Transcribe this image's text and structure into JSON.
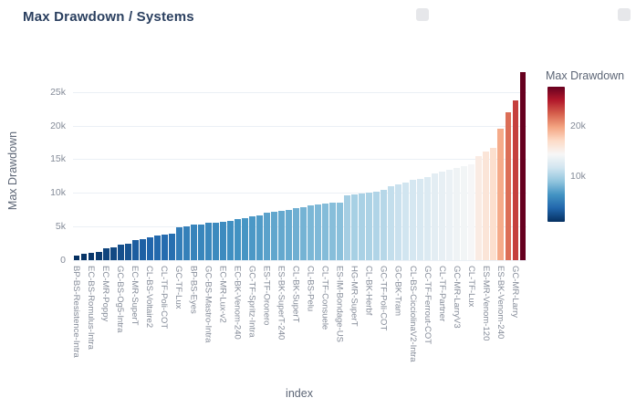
{
  "page": {
    "background": "#ffffff"
  },
  "icons": {
    "toolbar_left_button": "square-placeholder",
    "toolbar_right_button": "square-placeholder"
  },
  "colors": {
    "title_text": "#2a3f5f",
    "axis_title_text": "#5d6676",
    "tick_text": "#848b98",
    "gridline": "#ebf0f5"
  },
  "chart_data": {
    "type": "bar",
    "title": "Max Drawdown / Systems",
    "xlabel": "index",
    "ylabel": "Max Drawdown",
    "colorbar_title": "Max Drawdown",
    "grid": true,
    "legend_position": "right",
    "ylim": [
      0,
      28500
    ],
    "yticks": {
      "values": [
        0,
        5000,
        10000,
        15000,
        20000,
        25000
      ],
      "labels": [
        "0",
        "5k",
        "10k",
        "15k",
        "20k",
        "25k"
      ]
    },
    "colorbar_ticks": {
      "values": [
        10000,
        20000
      ],
      "labels": [
        "10k",
        "20k"
      ]
    },
    "x_tick_step": 2,
    "x_tick_labels": [
      "BP-BS-Resistence-Intra",
      "EC-BS-Romulus-Intra",
      "EC-MR-Poppy",
      "GC-BS-Og5-Intra",
      "EC-MR-SuperT",
      "CL-BS-Voltaire2",
      "CL-TF-Poli-COT",
      "GC-TF-Lux",
      "BP-BS-Eyes",
      "GC-BS-Mastro-Intra",
      "EC-MR-Lux-v2",
      "EC-BK-Venom-240",
      "GC-TF-Spritz-Intra",
      "ES-TF-Oronero",
      "ES-BK-SuperT-240",
      "CL-BK-SuperT",
      "CL-BS-Pelu",
      "CL-TF-Consuele",
      "ES-IM-Bondage-US",
      "HG-MR-SuperT",
      "CL-BK-Herbf",
      "GC-TF-Poli-COT",
      "GC-BK-Tram",
      "CL-BS-CicciolinaV2-Intra",
      "GC-TF-Ferrout-COT",
      "CL-TF-Partner",
      "GC-MR-LarryV3",
      "CL-TF-Lux",
      "ES-MR-Venom-120",
      "ES-BK-Venom-240",
      "GC-MR-Larry"
    ],
    "bars": {
      "count": 62,
      "values": [
        700,
        900,
        1050,
        1250,
        1750,
        1950,
        2250,
        2450,
        3000,
        3150,
        3400,
        3600,
        3800,
        3950,
        4850,
        5000,
        5250,
        5350,
        5500,
        5600,
        5700,
        5900,
        6100,
        6300,
        6450,
        6600,
        7000,
        7200,
        7300,
        7450,
        7700,
        7900,
        8100,
        8250,
        8400,
        8500,
        8600,
        9700,
        9800,
        9900,
        10000,
        10200,
        10450,
        11000,
        11300,
        11600,
        11900,
        12100,
        12400,
        12900,
        13200,
        13500,
        13750,
        14000,
        14250,
        15500,
        16100,
        16700,
        19500,
        22000,
        23800,
        28000
      ]
    },
    "colorscale": [
      [
        0.0,
        "#053061"
      ],
      [
        0.1,
        "#2166ac"
      ],
      [
        0.2,
        "#4393c3"
      ],
      [
        0.3,
        "#92c5de"
      ],
      [
        0.4,
        "#d1e5f0"
      ],
      [
        0.5,
        "#f7f7f7"
      ],
      [
        0.6,
        "#fddbc7"
      ],
      [
        0.7,
        "#f4a582"
      ],
      [
        0.8,
        "#d6604d"
      ],
      [
        0.9,
        "#b2182b"
      ],
      [
        1.0,
        "#67001f"
      ]
    ]
  }
}
